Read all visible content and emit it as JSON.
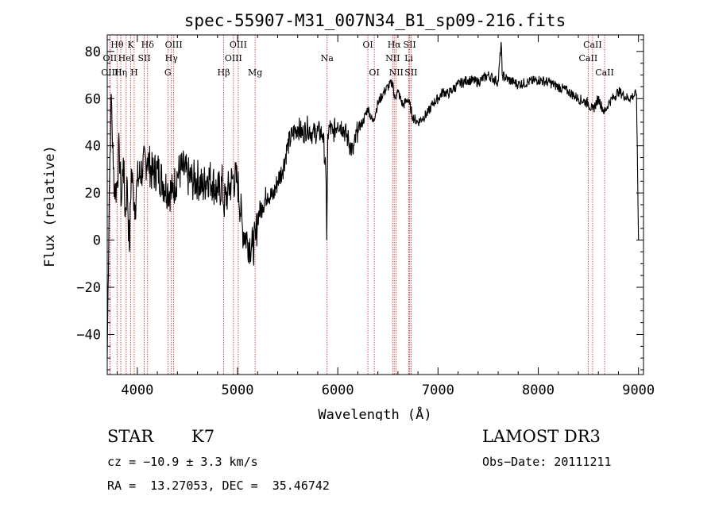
{
  "chart_data": {
    "type": "line",
    "title": "spec-55907-M31_007N34_B1_sp09-216.fits",
    "xlabel": "Wavelength (Å)",
    "ylabel": "Flux (relative)",
    "xlim": [
      3700,
      9050
    ],
    "ylim": [
      -57,
      87
    ],
    "xticks": [
      4000,
      5000,
      6000,
      7000,
      8000,
      9000
    ],
    "yticks": [
      -40,
      -20,
      0,
      20,
      40,
      60,
      80
    ],
    "xtick_labels": [
      "4000",
      "5000",
      "6000",
      "7000",
      "8000",
      "9000"
    ],
    "ytick_labels": [
      "−40",
      "−20",
      "0",
      "20",
      "40",
      "60",
      "80"
    ],
    "grid": false,
    "series": [
      {
        "x": [
          3700,
          3720,
          3740,
          3760,
          3780,
          3800,
          3820,
          3840,
          3860,
          3880,
          3900,
          3920,
          3940,
          3960,
          3980,
          4000,
          4050,
          4100,
          4150,
          4200,
          4250,
          4300,
          4350,
          4400,
          4450,
          4500,
          4550,
          4600,
          4650,
          4700,
          4750,
          4800,
          4850,
          4860,
          4900,
          4950,
          5000,
          5050,
          5100,
          5150,
          5180,
          5200,
          5250,
          5300,
          5350,
          5400,
          5450,
          5500,
          5550,
          5600,
          5650,
          5700,
          5750,
          5800,
          5850,
          5880,
          5890,
          5895,
          5900,
          5920,
          5950,
          6000,
          6050,
          6100,
          6150,
          6200,
          6250,
          6300,
          6350,
          6400,
          6450,
          6500,
          6550,
          6563,
          6600,
          6650,
          6700,
          6750,
          6800,
          6850,
          6900,
          6950,
          7000,
          7050,
          7100,
          7150,
          7200,
          7300,
          7400,
          7500,
          7600,
          7630,
          7640,
          7700,
          7800,
          7900,
          8000,
          8100,
          8200,
          8300,
          8400,
          8500,
          8542,
          8600,
          8662,
          8700,
          8800,
          8900,
          8980,
          9000
        ],
        "y": [
          -50,
          20,
          62,
          30,
          20,
          25,
          40,
          15,
          35,
          10,
          25,
          -5,
          30,
          20,
          15,
          25,
          30,
          35,
          28,
          30,
          25,
          22,
          20,
          28,
          30,
          27,
          25,
          26,
          22,
          27,
          25,
          20,
          24,
          15,
          20,
          26,
          25,
          5,
          0,
          -3,
          0,
          10,
          15,
          20,
          18,
          25,
          30,
          40,
          45,
          48,
          45,
          48,
          45,
          46,
          45,
          30,
          0,
          20,
          45,
          48,
          45,
          50,
          48,
          43,
          37,
          47,
          50,
          56,
          50,
          58,
          62,
          65,
          67,
          60,
          63,
          57,
          60,
          52,
          50,
          52,
          54,
          58,
          60,
          63,
          62,
          64,
          66,
          68,
          67,
          70,
          67,
          84,
          70,
          68,
          66,
          67,
          68,
          67,
          65,
          63,
          60,
          58,
          55,
          60,
          54,
          58,
          63,
          60,
          62,
          0
        ]
      }
    ],
    "spectral_lines": [
      {
        "label": "Hθ",
        "x": 3798,
        "row": 0
      },
      {
        "label": "K",
        "x": 3934,
        "row": 0
      },
      {
        "label": "Hδ",
        "x": 4102,
        "row": 0
      },
      {
        "label": "OIII",
        "x": 4363,
        "row": 0
      },
      {
        "label": "OIII",
        "x": 5007,
        "row": 0
      },
      {
        "label": "OI",
        "x": 6300,
        "row": 0
      },
      {
        "label": "Hα",
        "x": 6563,
        "row": 0
      },
      {
        "label": "SII",
        "x": 6717,
        "row": 0
      },
      {
        "label": "CaII",
        "x": 8542,
        "row": 0
      },
      {
        "label": "OII",
        "x": 3727,
        "row": 1
      },
      {
        "label": "HeI",
        "x": 3889,
        "row": 1
      },
      {
        "label": "SII",
        "x": 4069,
        "row": 1
      },
      {
        "label": "Hγ",
        "x": 4340,
        "row": 1
      },
      {
        "label": "OIII",
        "x": 4959,
        "row": 1
      },
      {
        "label": "Na",
        "x": 5893,
        "row": 1
      },
      {
        "label": "NII",
        "x": 6548,
        "row": 1
      },
      {
        "label": "Li",
        "x": 6708,
        "row": 1
      },
      {
        "label": "CaII",
        "x": 8498,
        "row": 1
      },
      {
        "label": "OIII",
        "x": 3726,
        "row": 2
      },
      {
        "label": "Hη",
        "x": 3835,
        "row": 2
      },
      {
        "label": "H",
        "x": 3969,
        "row": 2
      },
      {
        "label": "G",
        "x": 4305,
        "row": 2
      },
      {
        "label": "Hβ",
        "x": 4861,
        "row": 2
      },
      {
        "label": "Mg",
        "x": 5175,
        "row": 2
      },
      {
        "label": "OI",
        "x": 6364,
        "row": 2
      },
      {
        "label": "NII",
        "x": 6583,
        "row": 2
      },
      {
        "label": "SII",
        "x": 6731,
        "row": 2
      },
      {
        "label": "CaII",
        "x": 8662,
        "row": 2
      }
    ],
    "line_color": "#000000",
    "marker_color": "#cc2222"
  },
  "info": {
    "class_label": "STAR",
    "subclass_label": "K7",
    "survey": "LAMOST DR3",
    "cz": "cz = −10.9 ± 3.3 km/s",
    "obs_date": "Obs−Date: 20111211",
    "coords": "RA =  13.27053, DEC =  35.46742"
  }
}
